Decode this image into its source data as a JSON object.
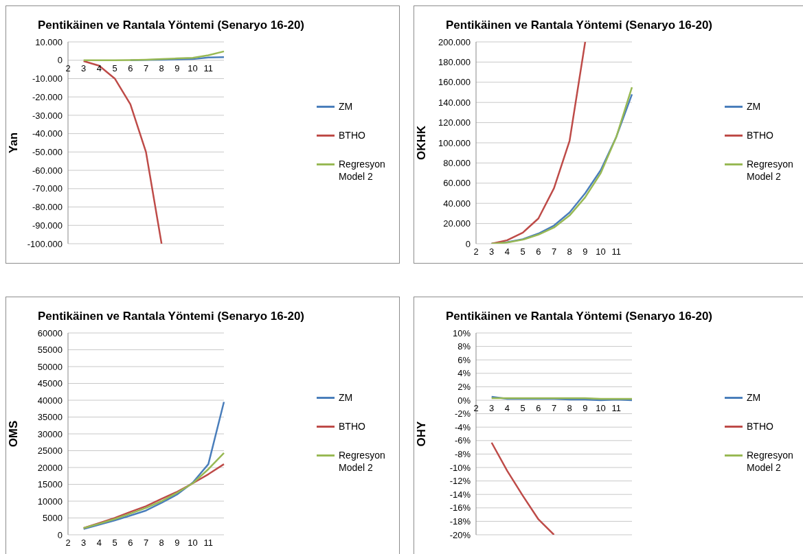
{
  "chart_data": [
    {
      "type": "line",
      "title": "Pentikäinen ve Rantala Yöntemi (Senaryo 16-20)",
      "ylabel": "Yan",
      "categories": [
        "2",
        "3",
        "4",
        "5",
        "6",
        "7",
        "8",
        "9",
        "10",
        "11",
        null
      ],
      "grid": "y",
      "legend": "right",
      "marker": "none",
      "ylim": [
        -100000,
        10000
      ],
      "yticks": [
        {
          "value": 10000,
          "label": "10.000"
        },
        0,
        {
          "value": -10000,
          "label": "-10.000"
        },
        {
          "value": -20000,
          "label": "-20.000"
        },
        {
          "value": -30000,
          "label": "-30.000"
        },
        {
          "value": -40000,
          "label": "-40.000"
        },
        {
          "value": -50000,
          "label": "-50.000"
        },
        {
          "value": -60000,
          "label": "-60.000"
        },
        {
          "value": -70000,
          "label": "-70.000"
        },
        {
          "value": -80000,
          "label": "-80.000"
        },
        {
          "value": -90000,
          "label": "-90.000"
        },
        {
          "value": -100000,
          "label": "-100.000"
        }
      ],
      "series": [
        {
          "name": "ZM",
          "color": "#4a7ebb",
          "values": [
            null,
            null,
            null,
            null,
            0,
            200,
            300,
            500,
            600,
            1500,
            1700
          ]
        },
        {
          "name": "BTHO",
          "color": "#be4b48",
          "values": [
            null,
            -500,
            -3000,
            -10000,
            -24000,
            -50000,
            -100000,
            null,
            null,
            null,
            null
          ]
        },
        {
          "name": "Regresyon Model 2",
          "color": "#98b954",
          "values": [
            null,
            0,
            0,
            0,
            100,
            300,
            600,
            1000,
            1300,
            2700,
            4800
          ]
        }
      ]
    },
    {
      "type": "line",
      "title": "Pentikäinen ve Rantala Yöntemi (Senaryo 16-20)",
      "ylabel": "OKHK",
      "categories": [
        "2",
        "3",
        "4",
        "5",
        "6",
        "7",
        "8",
        "9",
        "10",
        "11",
        null
      ],
      "grid": "y",
      "legend": "right",
      "marker": "none",
      "ylim": [
        0,
        200000
      ],
      "yticks": [
        0,
        {
          "value": 20000,
          "label": "20.000"
        },
        {
          "value": 40000,
          "label": "40.000"
        },
        {
          "value": 60000,
          "label": "60.000"
        },
        {
          "value": 80000,
          "label": "80.000"
        },
        {
          "value": 100000,
          "label": "100.000"
        },
        {
          "value": 120000,
          "label": "120.000"
        },
        {
          "value": 140000,
          "label": "140.000"
        },
        {
          "value": 160000,
          "label": "160.000"
        },
        {
          "value": 180000,
          "label": "180.000"
        },
        {
          "value": 200000,
          "label": "200.000"
        }
      ],
      "series": [
        {
          "name": "ZM",
          "color": "#4a7ebb",
          "values": [
            null,
            0,
            1500,
            4500,
            10000,
            18000,
            31000,
            50000,
            73000,
            106000,
            148000
          ]
        },
        {
          "name": "BTHO",
          "color": "#be4b48",
          "values": [
            null,
            0,
            3500,
            11000,
            25000,
            55000,
            102000,
            200000,
            null,
            null,
            null
          ]
        },
        {
          "name": "Regresyon Model 2",
          "color": "#98b954",
          "values": [
            null,
            0,
            1200,
            4000,
            9000,
            16000,
            28000,
            46000,
            70000,
            106000,
            155000
          ]
        }
      ]
    },
    {
      "type": "line",
      "title": "Pentikäinen ve Rantala Yöntemi (Senaryo 16-20)",
      "ylabel": "OMS",
      "categories": [
        "2",
        "3",
        "4",
        "5",
        "6",
        "7",
        "8",
        "9",
        "10",
        "11",
        null
      ],
      "grid": "y",
      "legend": "right",
      "marker": "none",
      "ylim": [
        0,
        60000
      ],
      "yticks": [
        0,
        5000,
        10000,
        15000,
        20000,
        25000,
        30000,
        35000,
        40000,
        45000,
        50000,
        55000,
        60000
      ],
      "series": [
        {
          "name": "ZM",
          "color": "#4a7ebb",
          "values": [
            null,
            1700,
            3000,
            4300,
            5700,
            7200,
            9500,
            12000,
            15500,
            21000,
            39500
          ]
        },
        {
          "name": "BTHO",
          "color": "#be4b48",
          "values": [
            null,
            2000,
            3500,
            5000,
            6800,
            8500,
            10700,
            12800,
            15300,
            18000,
            21000
          ]
        },
        {
          "name": "Regresyon Model 2",
          "color": "#98b954",
          "values": [
            null,
            2000,
            3300,
            4700,
            6300,
            8000,
            10000,
            12500,
            15300,
            19500,
            24300
          ]
        }
      ]
    },
    {
      "type": "line",
      "title": "Pentikäinen ve Rantala Yöntemi (Senaryo 16-20)",
      "ylabel": "OHY",
      "categories": [
        "2",
        "3",
        "4",
        "5",
        "6",
        "7",
        "8",
        "9",
        "10",
        "11",
        null
      ],
      "grid": "y",
      "legend": "right",
      "marker": "none",
      "ylim": [
        -20,
        10
      ],
      "yticks": [
        {
          "value": 10,
          "label": "10%"
        },
        {
          "value": 8,
          "label": "8%"
        },
        {
          "value": 6,
          "label": "6%"
        },
        {
          "value": 4,
          "label": "4%"
        },
        {
          "value": 2,
          "label": "2%"
        },
        {
          "value": 0,
          "label": "0%"
        },
        {
          "value": -2,
          "label": "-2%"
        },
        {
          "value": -4,
          "label": "-4%"
        },
        {
          "value": -6,
          "label": "-6%"
        },
        {
          "value": -8,
          "label": "-8%"
        },
        {
          "value": -10,
          "label": "-10%"
        },
        {
          "value": -12,
          "label": "-12%"
        },
        {
          "value": -14,
          "label": "-14%"
        },
        {
          "value": -16,
          "label": "-16%"
        },
        {
          "value": -18,
          "label": "-18%"
        },
        {
          "value": -20,
          "label": "-20%"
        }
      ],
      "series": [
        {
          "name": "ZM",
          "color": "#4a7ebb",
          "values": [
            null,
            0.5,
            0.2,
            0.2,
            0.2,
            0.2,
            0.1,
            0.1,
            0,
            0.1,
            0
          ]
        },
        {
          "name": "BTHO",
          "color": "#be4b48",
          "values": [
            null,
            -6.3,
            -10.5,
            -14.2,
            -17.7,
            -20,
            null,
            null,
            null,
            null,
            null
          ]
        },
        {
          "name": "Regresyon Model 2",
          "color": "#98b954",
          "values": [
            null,
            0.3,
            0.3,
            0.3,
            0.3,
            0.3,
            0.3,
            0.3,
            0.2,
            0.2,
            0.2
          ]
        }
      ]
    }
  ]
}
